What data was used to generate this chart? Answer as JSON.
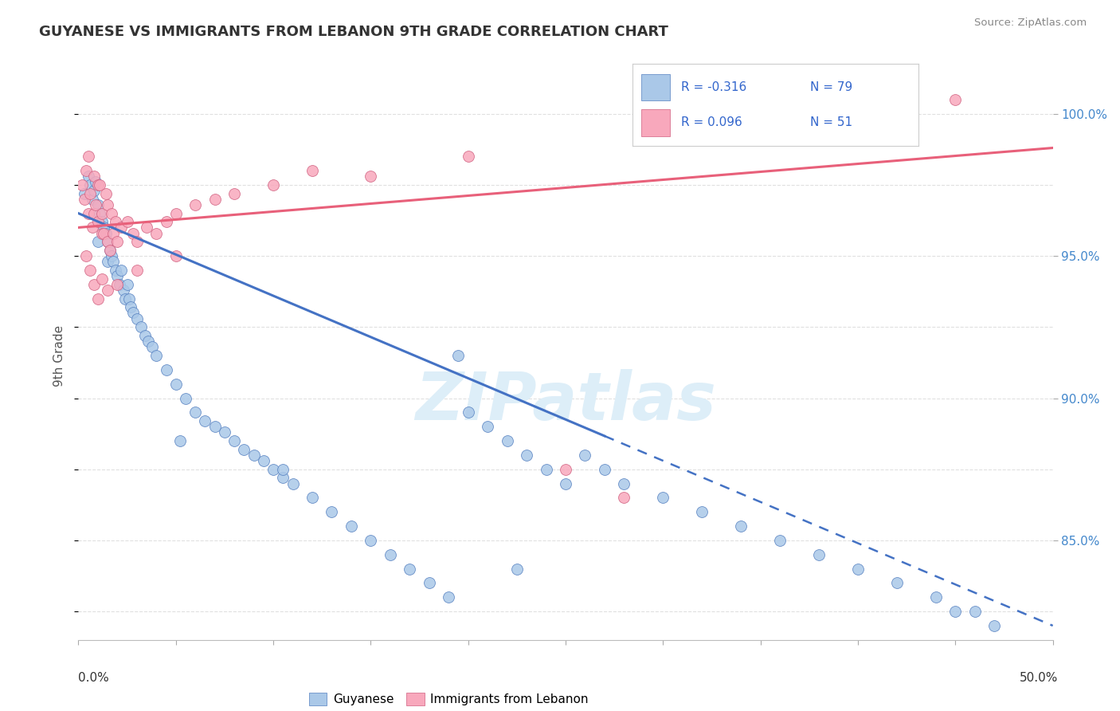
{
  "title": "GUYANESE VS IMMIGRANTS FROM LEBANON 9TH GRADE CORRELATION CHART",
  "source": "Source: ZipAtlas.com",
  "ylabel": "9th Grade",
  "x_range": [
    0.0,
    50.0
  ],
  "y_range": [
    81.5,
    101.5
  ],
  "r1": -0.316,
  "n1": 79,
  "r2": 0.096,
  "n2": 51,
  "legend_label1": "Guyanese",
  "legend_label2": "Immigrants from Lebanon",
  "blue_dot_color": "#aac8e8",
  "blue_dot_edge": "#5580c0",
  "pink_dot_color": "#f8a8bc",
  "pink_dot_edge": "#d06080",
  "blue_line_color": "#4472c4",
  "pink_line_color": "#e8607a",
  "blue_line_y0": 96.5,
  "blue_line_y1": 82.0,
  "blue_solid_end_x": 27.0,
  "pink_line_y0": 96.0,
  "pink_line_y1": 98.8,
  "watermark": "ZIPatlas",
  "watermark_color": "#ddeef8",
  "background_color": "#ffffff",
  "grid_color": "#e0e0e0",
  "ytick_positions": [
    85.0,
    90.0,
    95.0,
    100.0
  ],
  "ytick_labels": [
    "85.0%",
    "90.0%",
    "95.0%",
    "100.0%"
  ],
  "blue_dots_x": [
    0.3,
    0.5,
    0.6,
    0.7,
    0.8,
    0.9,
    1.0,
    1.0,
    1.1,
    1.2,
    1.3,
    1.4,
    1.5,
    1.5,
    1.6,
    1.7,
    1.8,
    1.9,
    2.0,
    2.1,
    2.2,
    2.3,
    2.4,
    2.5,
    2.6,
    2.7,
    2.8,
    3.0,
    3.2,
    3.4,
    3.6,
    3.8,
    4.0,
    4.5,
    5.0,
    5.5,
    6.0,
    6.5,
    7.0,
    7.5,
    8.0,
    8.5,
    9.0,
    9.5,
    10.0,
    10.5,
    11.0,
    12.0,
    13.0,
    14.0,
    15.0,
    16.0,
    17.0,
    18.0,
    19.0,
    20.0,
    21.0,
    22.0,
    23.0,
    24.0,
    25.0,
    26.0,
    27.0,
    28.0,
    30.0,
    32.0,
    34.0,
    36.0,
    38.0,
    40.0,
    42.0,
    44.0,
    45.0,
    46.0,
    47.0,
    22.5,
    19.5,
    10.5,
    5.2
  ],
  "blue_dots_y": [
    97.2,
    97.8,
    97.5,
    97.0,
    97.3,
    97.6,
    96.8,
    95.5,
    96.5,
    96.2,
    96.0,
    95.8,
    95.5,
    94.8,
    95.2,
    95.0,
    94.8,
    94.5,
    94.3,
    94.0,
    94.5,
    93.8,
    93.5,
    94.0,
    93.5,
    93.2,
    93.0,
    92.8,
    92.5,
    92.2,
    92.0,
    91.8,
    91.5,
    91.0,
    90.5,
    90.0,
    89.5,
    89.2,
    89.0,
    88.8,
    88.5,
    88.2,
    88.0,
    87.8,
    87.5,
    87.2,
    87.0,
    86.5,
    86.0,
    85.5,
    85.0,
    84.5,
    84.0,
    83.5,
    83.0,
    89.5,
    89.0,
    88.5,
    88.0,
    87.5,
    87.0,
    88.0,
    87.5,
    87.0,
    86.5,
    86.0,
    85.5,
    85.0,
    84.5,
    84.0,
    83.5,
    83.0,
    82.5,
    82.5,
    82.0,
    84.0,
    91.5,
    87.5,
    88.5
  ],
  "pink_dots_x": [
    0.2,
    0.3,
    0.4,
    0.5,
    0.5,
    0.6,
    0.7,
    0.8,
    0.8,
    0.9,
    1.0,
    1.0,
    1.1,
    1.2,
    1.2,
    1.3,
    1.4,
    1.5,
    1.5,
    1.6,
    1.7,
    1.8,
    1.9,
    2.0,
    2.2,
    2.5,
    2.8,
    3.0,
    3.5,
    4.0,
    4.5,
    5.0,
    6.0,
    7.0,
    8.0,
    10.0,
    12.0,
    15.0,
    20.0,
    25.0,
    28.0,
    0.4,
    0.6,
    0.8,
    1.0,
    1.2,
    1.5,
    2.0,
    3.0,
    5.0,
    45.0
  ],
  "pink_dots_y": [
    97.5,
    97.0,
    98.0,
    96.5,
    98.5,
    97.2,
    96.0,
    97.8,
    96.5,
    96.8,
    96.2,
    97.5,
    97.5,
    96.5,
    95.8,
    95.8,
    97.2,
    95.5,
    96.8,
    95.2,
    96.5,
    95.8,
    96.2,
    95.5,
    96.0,
    96.2,
    95.8,
    95.5,
    96.0,
    95.8,
    96.2,
    96.5,
    96.8,
    97.0,
    97.2,
    97.5,
    98.0,
    97.8,
    98.5,
    87.5,
    86.5,
    95.0,
    94.5,
    94.0,
    93.5,
    94.2,
    93.8,
    94.0,
    94.5,
    95.0,
    100.5
  ]
}
